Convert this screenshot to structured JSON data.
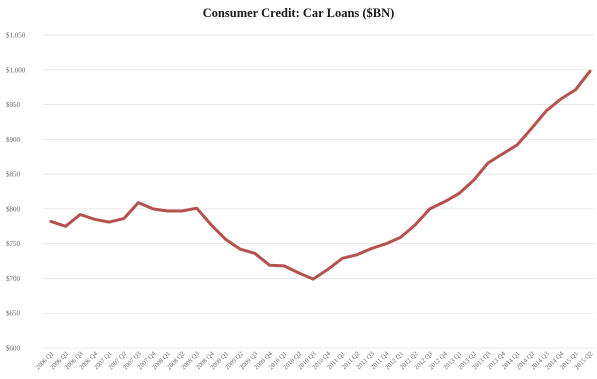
{
  "chart_data": {
    "type": "line",
    "title": "Consumer Credit: Car Loans ($BN)",
    "xlabel": "",
    "ylabel": "",
    "ylim": [
      600,
      1050
    ],
    "yticks": [
      600,
      650,
      700,
      750,
      800,
      850,
      900,
      950,
      1000,
      1050
    ],
    "ytick_labels": [
      "$600",
      "$650",
      "$700",
      "$750",
      "$800",
      "$850",
      "$900",
      "$950",
      "$1,000",
      "$1,050"
    ],
    "grid": true,
    "line_color": "#b5524e",
    "categories": [
      "2006 Q1",
      "2006 Q2",
      "2006 Q3",
      "2006 Q4",
      "2007 Q1",
      "2007 Q2",
      "2007 Q3",
      "2007 Q4",
      "2008 Q1",
      "2008 Q2",
      "2008 Q3",
      "2008 Q4",
      "2009 Q1",
      "2009 Q2",
      "2009 Q3",
      "2009 Q4",
      "2010 Q1",
      "2010 Q2",
      "2010 Q3",
      "2010 Q4",
      "2011 Q1",
      "2011 Q2",
      "2011 Q3",
      "2011 Q4",
      "2012 Q1",
      "2012 Q2",
      "2012 Q3",
      "2012 Q4",
      "2013 Q1",
      "2013 Q2",
      "2013 Q3",
      "2013 Q4",
      "2014 Q1",
      "2014 Q2",
      "2014 Q3",
      "2014 Q4",
      "2015 Q1",
      "2015 Q2"
    ],
    "values": [
      782,
      775,
      792,
      785,
      781,
      786,
      809,
      800,
      797,
      797,
      801,
      777,
      756,
      742,
      736,
      719,
      718,
      708,
      699,
      713,
      729,
      734,
      743,
      750,
      759,
      777,
      800,
      810,
      822,
      841,
      866,
      879,
      892,
      916,
      941,
      958,
      971,
      998
    ]
  }
}
